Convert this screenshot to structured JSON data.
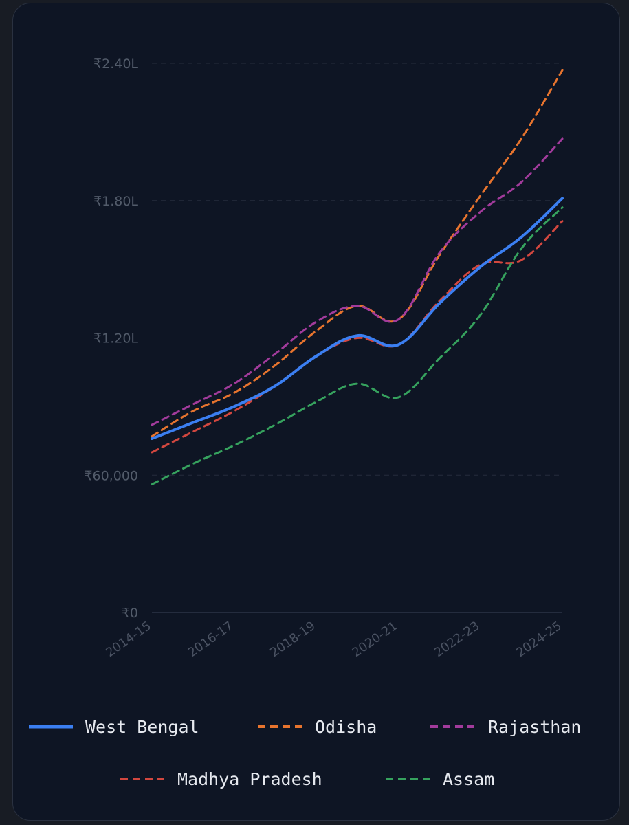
{
  "chart_data": {
    "type": "line",
    "x": [
      "2014-15",
      "2015-16",
      "2016-17",
      "2017-18",
      "2018-19",
      "2019-20",
      "2020-21",
      "2021-22",
      "2022-23",
      "2023-24",
      "2024-25"
    ],
    "x_tick_labels": [
      "2014-15",
      "2016-17",
      "2018-19",
      "2020-21",
      "2022-23",
      "2024-25"
    ],
    "y_ticks": [
      0,
      60000,
      120000,
      180000,
      240000
    ],
    "y_tick_labels": [
      "₹0",
      "₹60,000",
      "₹1.20L",
      "₹1.80L",
      "₹2.40L"
    ],
    "ylim": [
      0,
      240000
    ],
    "grid": true,
    "legend_position": "bottom",
    "series": [
      {
        "name": "West Bengal",
        "color": "#3b7ff2",
        "style": "solid",
        "values": [
          76000,
          83000,
          90000,
          99000,
          112000,
          121000,
          117000,
          135000,
          151000,
          164000,
          181000
        ]
      },
      {
        "name": "Odisha",
        "color": "#e7742e",
        "style": "dashed",
        "values": [
          77000,
          88000,
          96000,
          108000,
          123000,
          134000,
          128000,
          156000,
          182000,
          207000,
          237000
        ]
      },
      {
        "name": "Rajasthan",
        "color": "#a23b9c",
        "style": "dashed",
        "values": [
          82000,
          91000,
          100000,
          113000,
          127000,
          134000,
          128000,
          157000,
          175000,
          188000,
          207000
        ]
      },
      {
        "name": "Madhya Pradesh",
        "color": "#d2473f",
        "style": "dashed",
        "values": [
          70000,
          79000,
          88000,
          99000,
          112000,
          120000,
          117000,
          136000,
          152000,
          154000,
          171000
        ]
      },
      {
        "name": "Assam",
        "color": "#36a25e",
        "style": "dashed",
        "values": [
          56000,
          65000,
          73000,
          82000,
          92000,
          100000,
          94000,
          111000,
          130000,
          159000,
          177000
        ]
      }
    ]
  }
}
